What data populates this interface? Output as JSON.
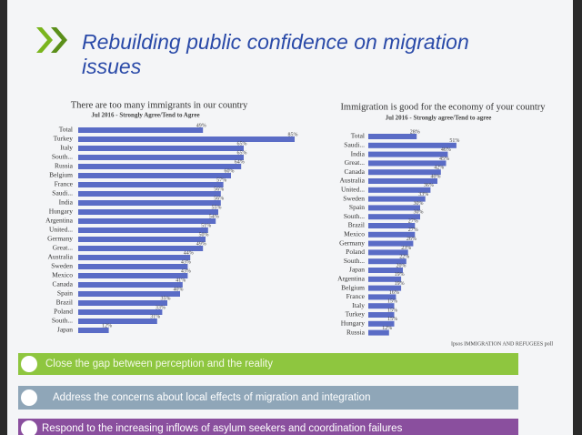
{
  "title": "Rebuilding public confidence on migration issues",
  "chart_data": [
    {
      "type": "bar",
      "orientation": "horizontal",
      "title": "There are too many immigrants in our country",
      "subtitle": "Jul 2016 - Strongly Agree/Tend to Agree",
      "color": "#5a6cc6",
      "categories": [
        "Total",
        "Turkey",
        "Italy",
        "South...",
        "Russia",
        "Belgium",
        "France",
        "Saudi...",
        "India",
        "Hungary",
        "Argentina",
        "United...",
        "Germany",
        "Great...",
        "Australia",
        "Sweden",
        "Mexico",
        "Canada",
        "Spain",
        "Brazil",
        "Poland",
        "South...",
        "Japan"
      ],
      "values": [
        49,
        85,
        65,
        65,
        64,
        60,
        57,
        56,
        56,
        55,
        54,
        51,
        50,
        49,
        44,
        43,
        43,
        41,
        40,
        35,
        33,
        31,
        12
      ],
      "value_labels": [
        "49%",
        "85%",
        "65%",
        "65%",
        "64%",
        "60%",
        "57%",
        "56%",
        "56%",
        "55%",
        "54%",
        "51%",
        "50%",
        "49%",
        "44%",
        "43%",
        "43%",
        "41%",
        "40%",
        "35%",
        "33%",
        "31%",
        "12%"
      ]
    },
    {
      "type": "bar",
      "orientation": "horizontal",
      "title": "Immigration is good for the economy of your country",
      "subtitle": "Jul 2016 - Strongly agree/Tend to agree",
      "color": "#5a6cc6",
      "categories": [
        "Total",
        "Saudi...",
        "India",
        "Great...",
        "Canada",
        "Australia",
        "United...",
        "Sweden",
        "Spain",
        "South...",
        "Brazil",
        "Mexico",
        "Germany",
        "Poland",
        "South...",
        "Japan",
        "Argentina",
        "Belgium",
        "France",
        "Italy",
        "Turkey",
        "Hungary",
        "Russia"
      ],
      "values": [
        28,
        51,
        46,
        45,
        42,
        40,
        36,
        33,
        30,
        30,
        27,
        27,
        26,
        23,
        22,
        20,
        19,
        19,
        16,
        15,
        15,
        15,
        12
      ],
      "value_labels": [
        "28%",
        "51%",
        "46%",
        "45%",
        "42%",
        "40%",
        "36%",
        "33%",
        "30%",
        "30%",
        "27%",
        "27%",
        "26%",
        "23%",
        "22%",
        "20%",
        "19%",
        "19%",
        "16%",
        "15%",
        "15%",
        "15%",
        "12%"
      ]
    }
  ],
  "source": "Ipsos IMMIGRATION AND REFUGEES poll",
  "points": [
    "Close the gap between perception and the reality",
    "Address the concerns about local effects of migration and integration",
    "Respond to the increasing inflows of asylum seekers and coordination failures"
  ]
}
